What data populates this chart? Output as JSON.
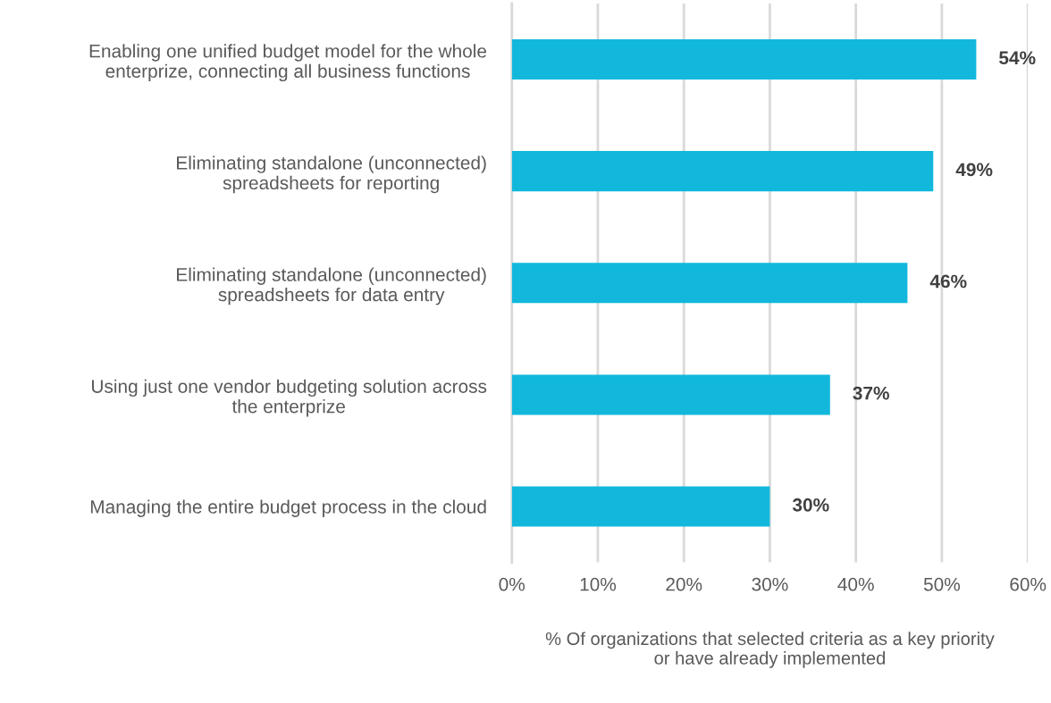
{
  "chart_data": {
    "type": "bar",
    "orientation": "horizontal",
    "categories": [
      "Enabling one unified budget model for the whole\nenterprize, connecting all business functions",
      "Eliminating standalone (unconnected)\nspreadsheets for reporting",
      "Eliminating standalone (unconnected)\nspreadsheets for data entry",
      "Using just one vendor budgeting solution across\nthe enterprize",
      "Managing the entire budget process in the cloud"
    ],
    "values": [
      54,
      49,
      46,
      37,
      30
    ],
    "value_labels": [
      "54%",
      "49%",
      "46%",
      "37%",
      "30%"
    ],
    "color": "#12b8dc",
    "xlim": [
      0,
      60
    ],
    "xticks": [
      {
        "value": 0,
        "label": "0%"
      },
      {
        "value": 10,
        "label": "10%"
      },
      {
        "value": 20,
        "label": "20%"
      },
      {
        "value": 30,
        "label": "30%"
      },
      {
        "value": 40,
        "label": "40%"
      },
      {
        "value": 50,
        "label": "50%"
      },
      {
        "value": 60,
        "label": "60%"
      }
    ],
    "xlabel": "% Of organizations that selected criteria as a key priority\nor have already implemented",
    "grid": "x",
    "legend": false
  }
}
